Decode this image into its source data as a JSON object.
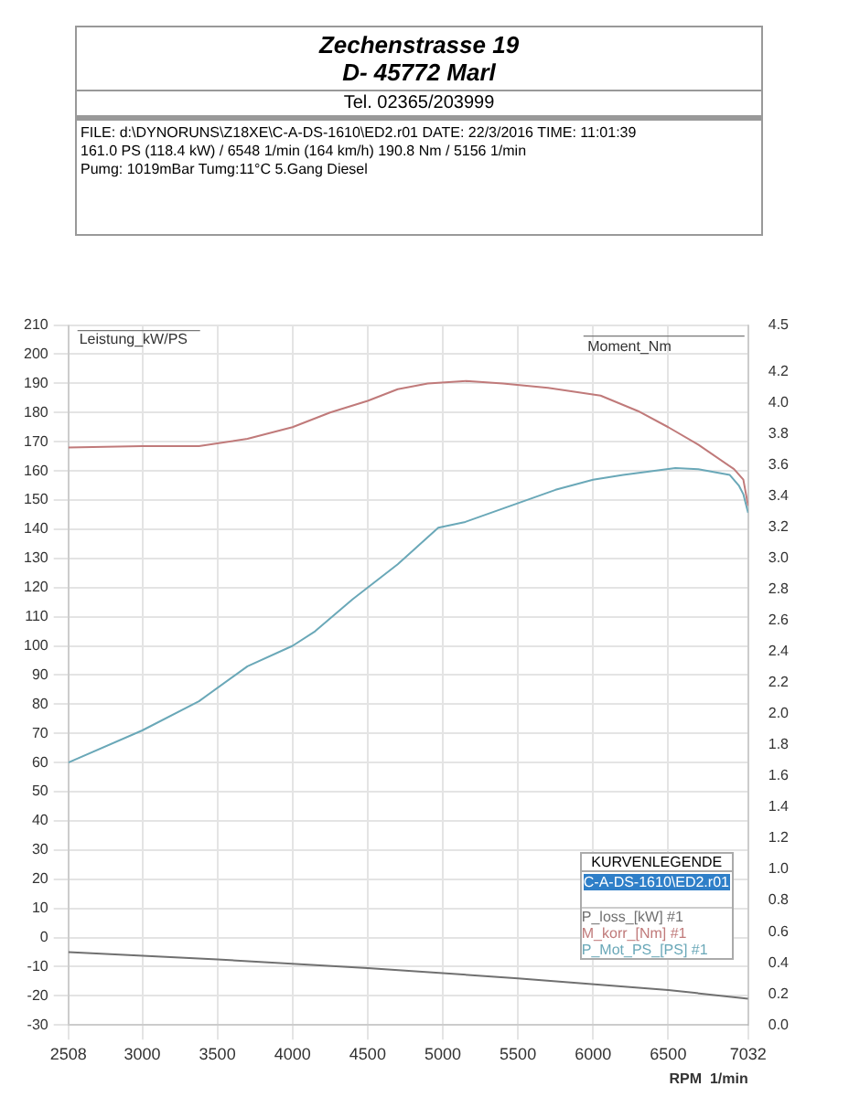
{
  "chart_data": {
    "type": "line",
    "annotations": [
      "Zechenstrasse 19",
      "D- 45772 Marl",
      "Tel. 02365/203999",
      "FILE: d:\\DYNORUNS\\Z18XE\\C-A-DS-1610\\ED2.r01  DATE: 22/3/2016  TIME: 11:01:39",
      "161.0 PS  (118.4 kW) / 6548 1/min (164 km/h)    190.8 Nm / 5156 1/min",
      "Pumg: 1019mBar  Tumg:11°C 5.Gang  Diesel",
      "C-A-DS-1610\\ED2.r01"
    ],
    "xlabel": "RPM  1/min",
    "ylabel": "Leistung_kW/PS",
    "y2label": "Moment_Nm",
    "legend_title": "KURVENLEGENDE",
    "legend": "bottom right",
    "grid": true,
    "marker": "none",
    "line_style": "solid",
    "xlim": [
      2508,
      7032
    ],
    "xticks": [
      2508,
      3000,
      3500,
      4000,
      4500,
      5000,
      5500,
      6000,
      6500,
      7032
    ],
    "ylim": [
      -30,
      210
    ],
    "yticks": [
      -30,
      -20,
      -10,
      0,
      10,
      20,
      30,
      40,
      50,
      60,
      70,
      80,
      90,
      100,
      110,
      120,
      130,
      140,
      150,
      160,
      170,
      180,
      190,
      200,
      210
    ],
    "y2lim": [
      0,
      4.5
    ],
    "y2ticks": [
      {
        "value": 0,
        "label": "0.0"
      },
      0.2,
      0.4,
      0.6,
      0.8,
      {
        "value": 1,
        "label": "1.0"
      },
      1.2,
      1.4,
      1.6,
      1.8,
      {
        "value": 2,
        "label": "2.0"
      },
      2.2,
      2.4,
      2.6,
      2.8,
      {
        "value": 3,
        "label": "3.0"
      },
      3.2,
      3.4,
      3.6,
      3.8,
      {
        "value": 4,
        "label": "4.0"
      },
      4.2,
      4.5
    ],
    "series": [
      {
        "name": "P_loss_[kW] #1",
        "color": "#707070",
        "x": [
          2508,
          3500,
          4500,
          5500,
          6500,
          7032
        ],
        "values": [
          -5,
          -7.5,
          -10.5,
          -14,
          -18,
          -21
        ]
      },
      {
        "name": "M_korr_[Nm] #1",
        "color": "#c07a7a",
        "x": [
          2508,
          3000,
          3377,
          3700,
          4000,
          4250,
          4500,
          4700,
          4900,
          5156,
          5400,
          5700,
          6050,
          6300,
          6500,
          6700,
          6938,
          7000,
          7032
        ],
        "values": [
          168,
          168.5,
          168.5,
          171,
          175,
          180,
          184,
          188,
          190,
          190.8,
          190,
          188.5,
          185.8,
          180.5,
          175,
          169,
          160.6,
          157,
          148
        ]
      },
      {
        "name": "P_Mot_PS_[PS] #1",
        "color": "#6aa8b8",
        "x": [
          2508,
          3000,
          3377,
          3700,
          4000,
          4150,
          4400,
          4700,
          4970,
          5150,
          5450,
          5750,
          6000,
          6200,
          6548,
          6700,
          6910,
          6970,
          7000,
          7032
        ],
        "values": [
          60,
          71,
          81,
          93,
          100,
          105,
          116,
          128,
          140.5,
          142.5,
          148,
          153.5,
          157,
          158.6,
          161,
          160.6,
          158.6,
          155,
          152,
          145.6
        ]
      }
    ]
  }
}
